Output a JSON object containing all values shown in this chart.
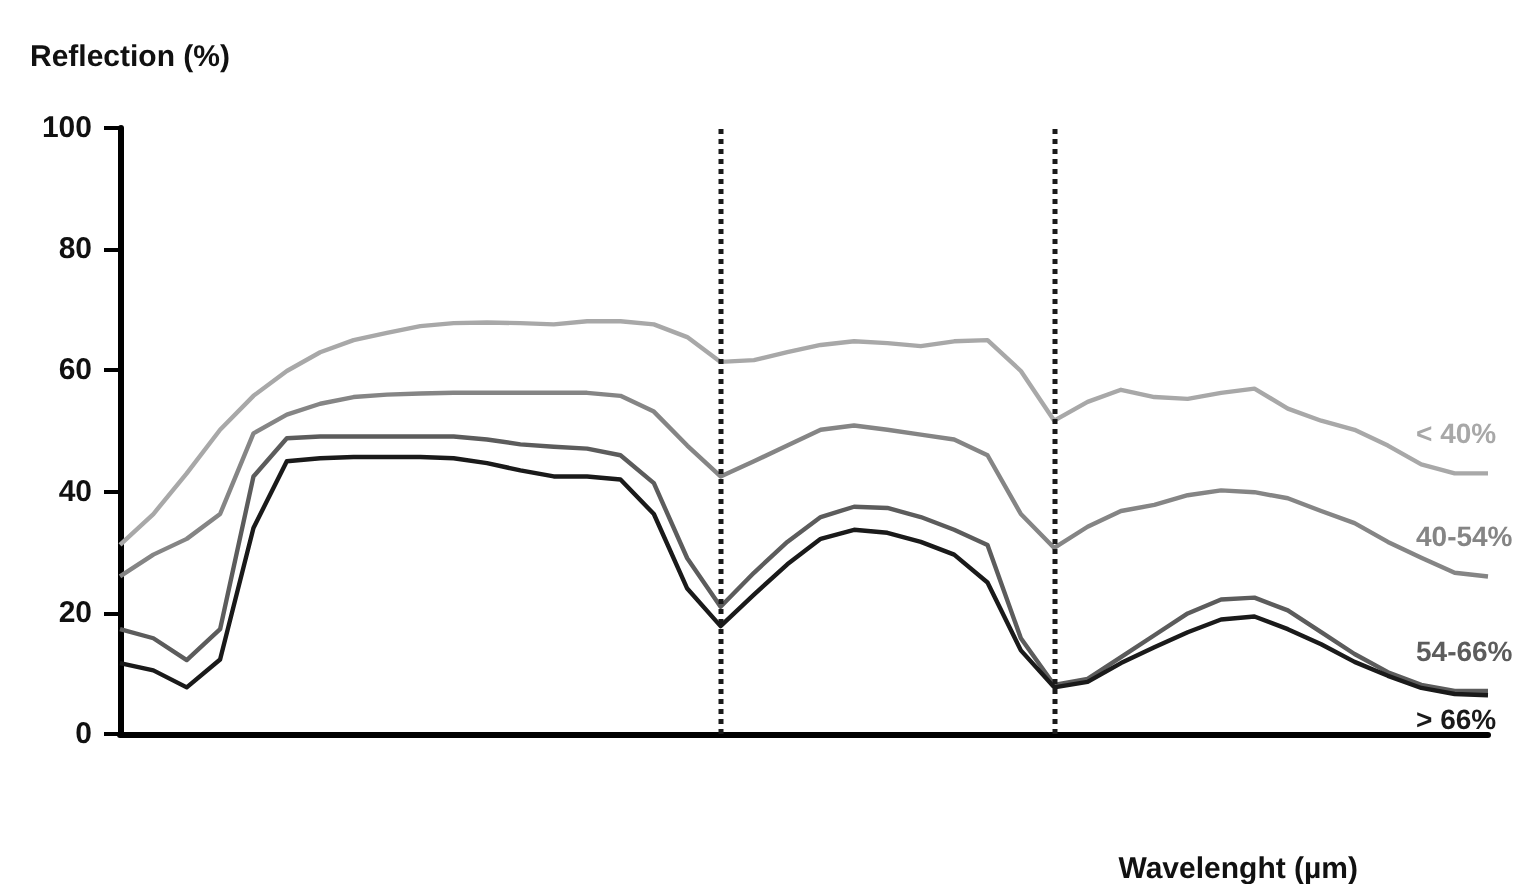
{
  "chart_data": {
    "type": "line",
    "xlabel": "Wavelenght (µm)",
    "ylabel": "Reflection (%)",
    "categories": [
      null,
      null,
      null,
      null,
      null,
      null,
      null,
      null,
      null,
      null,
      null,
      null,
      null,
      null,
      null,
      null,
      null,
      null,
      null,
      null,
      null,
      null,
      null,
      null,
      null,
      null,
      null,
      null,
      null,
      null,
      null,
      null,
      null,
      null,
      null,
      null,
      null,
      null,
      null,
      null,
      null,
      null
    ],
    "series": [
      {
        "name": "< 40%",
        "color": "#a8a8a8",
        "values": [
          31.2,
          36.3,
          43,
          50.2,
          55.8,
          59.9,
          63,
          65,
          66.2,
          67.3,
          67.8,
          67.9,
          67.8,
          67.6,
          68.1,
          68.1,
          67.6,
          65.5,
          61.4,
          61.7,
          63,
          64.2,
          64.8,
          64.5,
          64,
          64.8,
          65,
          59.9,
          51.7,
          54.8,
          56.8,
          55.6,
          55.3,
          56.3,
          57,
          53.7,
          51.7,
          50.2,
          47.6,
          44.5,
          43,
          43
        ]
      },
      {
        "name": "40-54%",
        "color": "#858585",
        "values": [
          26,
          29.6,
          32.2,
          36.3,
          49.6,
          52.7,
          54.5,
          55.6,
          56,
          56.2,
          56.3,
          56.3,
          56.3,
          56.3,
          56.3,
          55.8,
          53.2,
          47.6,
          42.5,
          45,
          47.6,
          50.2,
          50.9,
          50.2,
          49.4,
          48.6,
          46,
          36.3,
          30.7,
          34.2,
          36.8,
          37.8,
          39.4,
          40.2,
          39.9,
          38.9,
          36.8,
          34.8,
          31.7,
          29.1,
          26.6,
          26
        ]
      },
      {
        "name": "54-66%",
        "color": "#5c5c5c",
        "values": [
          17.3,
          15.8,
          12.2,
          17.3,
          42.5,
          48.8,
          49.1,
          49.1,
          49.1,
          49.1,
          49.1,
          48.6,
          47.8,
          47.4,
          47.1,
          46,
          41.4,
          29,
          21,
          26.6,
          31.7,
          35.8,
          37.5,
          37.3,
          35.8,
          33.7,
          31.2,
          15.8,
          8.1,
          9.1,
          12.7,
          16.3,
          19.9,
          22.2,
          22.5,
          20.4,
          16.8,
          13.2,
          10.2,
          8.1,
          7.1,
          7.1
        ]
      },
      {
        "name": "> 66%",
        "color": "#1a1a1a",
        "values": [
          11.7,
          10.5,
          7.7,
          12.3,
          34,
          45,
          45.5,
          45.7,
          45.7,
          45.7,
          45.5,
          44.7,
          43.5,
          42.5,
          42.5,
          42,
          36.3,
          24,
          17.8,
          23,
          28,
          32.2,
          33.7,
          33.2,
          31.7,
          29.6,
          25,
          13.8,
          7.7,
          8.6,
          11.7,
          14.3,
          16.8,
          18.9,
          19.4,
          17.3,
          14.8,
          11.9,
          9.6,
          7.6,
          6.6,
          6.4
        ]
      }
    ],
    "ylim": [
      0,
      100
    ],
    "yticks": [
      0,
      20,
      40,
      60,
      80,
      100
    ],
    "grid": false,
    "legend": false
  }
}
